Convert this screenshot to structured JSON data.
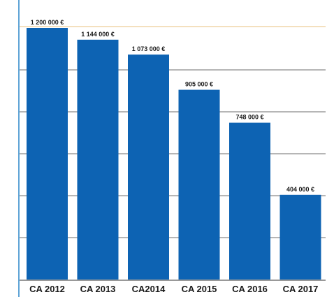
{
  "chart_data": {
    "type": "bar",
    "categories": [
      "CA 2012",
      "CA 2013",
      "CA2014",
      "CA 2015",
      "CA 2016",
      "CA 2017"
    ],
    "values": [
      1200000,
      1144000,
      1073000,
      905000,
      748000,
      404000
    ],
    "data_labels": [
      "1 200 000 €",
      "1 144 000 €",
      "1 073 000 €",
      "905 000 €",
      "748 000 €",
      "404 000 €"
    ],
    "ylim": [
      0,
      1200000
    ],
    "grid": true,
    "legend": "none",
    "colors": {
      "bar": "#0d63b3",
      "grid": "#8a8a8a",
      "axis": "#5fa4d6",
      "frame": "#f0d6a8"
    }
  }
}
